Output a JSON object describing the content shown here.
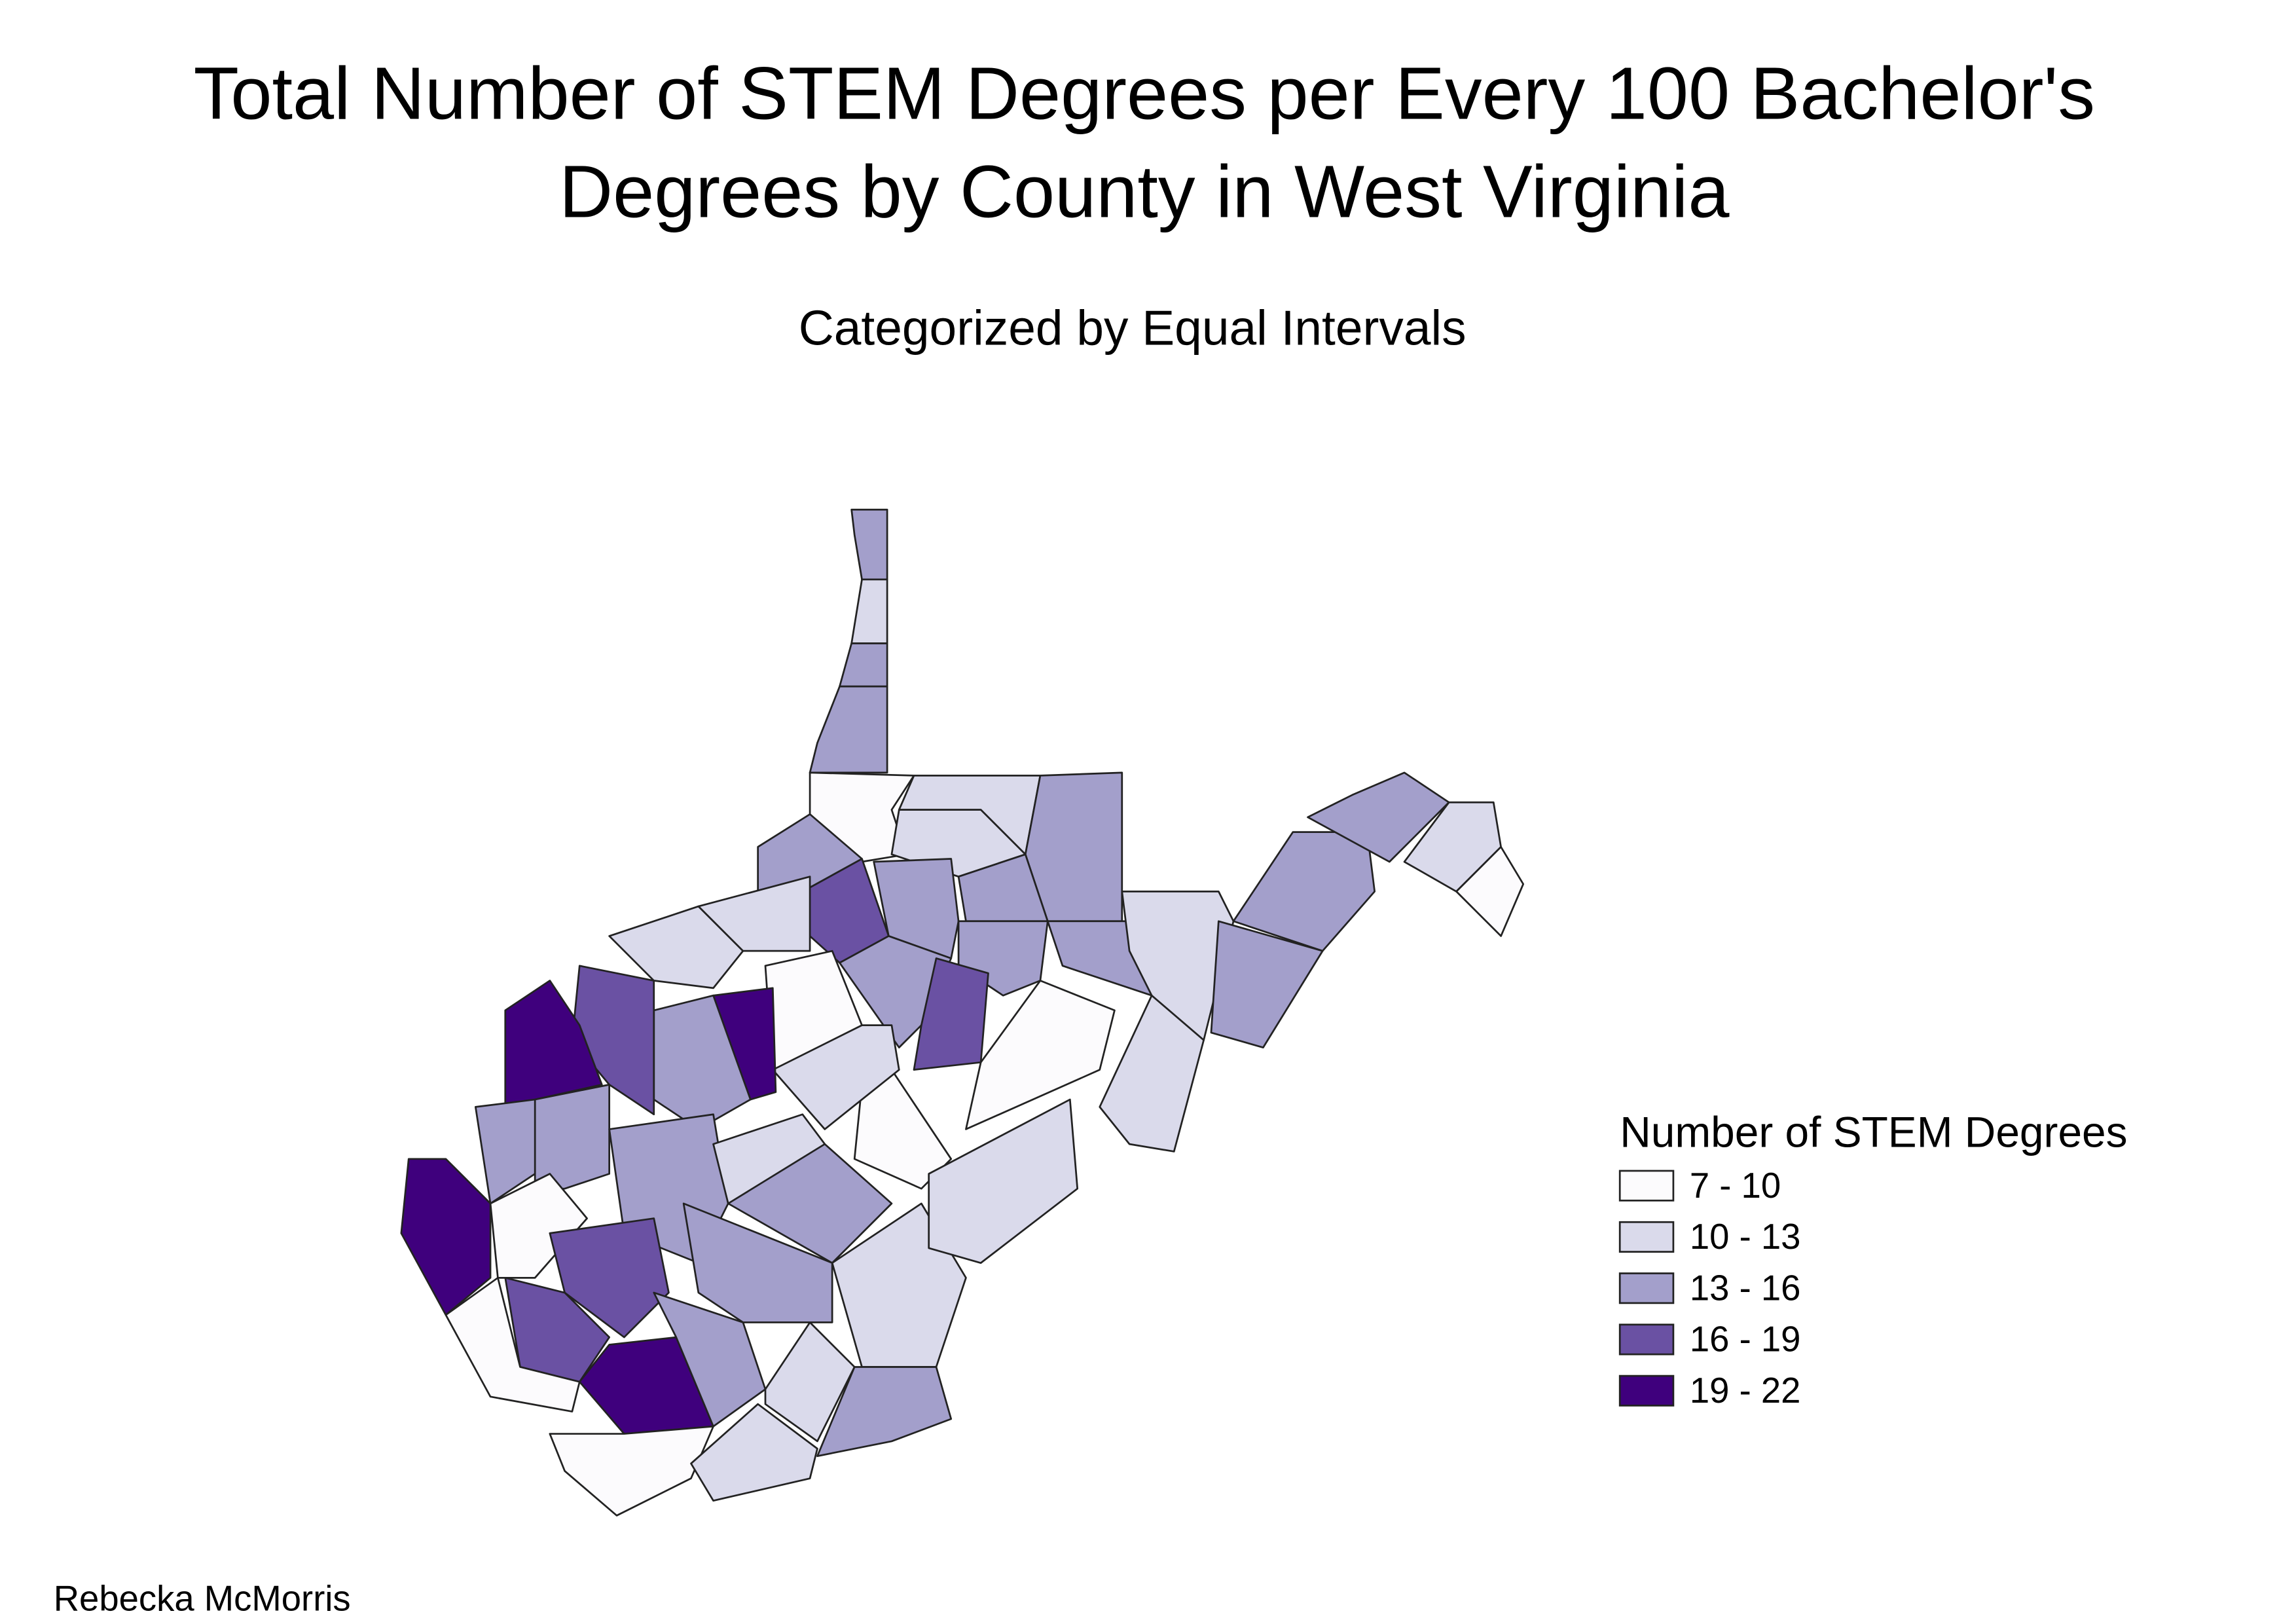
{
  "header": {
    "title_lines": [
      "Total Number of STEM Degrees per Every 100 Bachelor's",
      "Degrees by County in West Virginia"
    ],
    "subtitle": "Categorized by Equal Intervals"
  },
  "legend": {
    "title": "Number of STEM Degrees",
    "items": [
      {
        "label": "7 - 10",
        "color": "#fcfbfd"
      },
      {
        "label": "10 - 13",
        "color": "#dadaeb"
      },
      {
        "label": "13 - 16",
        "color": "#a39fcb"
      },
      {
        "label": "16 - 19",
        "color": "#6a51a3"
      },
      {
        "label": "19 - 22",
        "color": "#3f007d"
      }
    ]
  },
  "footer": {
    "author": "Rebecka McMorris"
  }
}
